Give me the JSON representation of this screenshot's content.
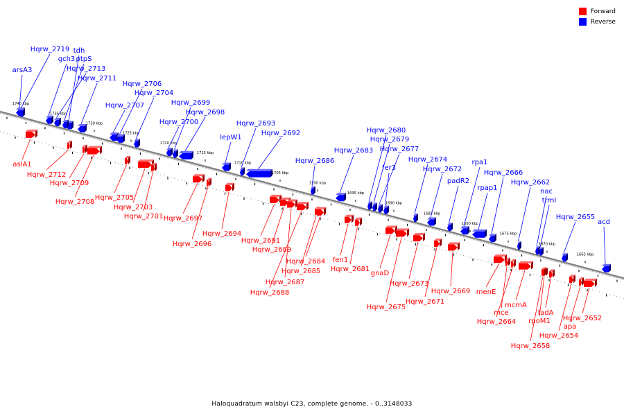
{
  "legend": {
    "forward": {
      "label": "Forward",
      "color": "#ff0000"
    },
    "reverse": {
      "label": "Reverse",
      "color": "#0000ff"
    }
  },
  "caption": "Haloquadratum walsbyi C23, complete genome. - 0..3148033",
  "genome_map": {
    "backbone_color": "#808080",
    "ticks": [
      {
        "label": "1740 kbp"
      },
      {
        "label": "1735 kbp"
      },
      {
        "label": "1730 kbp"
      },
      {
        "label": "1725 kbp"
      },
      {
        "label": "1720 kbp"
      },
      {
        "label": "1715 kbp"
      },
      {
        "label": "1710 kbp"
      },
      {
        "label": "1705 kbp"
      },
      {
        "label": "1700 kbp"
      },
      {
        "label": "1695 kbp"
      },
      {
        "label": "1690 kbp"
      },
      {
        "label": "1685 kbp"
      },
      {
        "label": "1680 kbp"
      },
      {
        "label": "1675 kbp"
      },
      {
        "label": "1670 kbp"
      },
      {
        "label": "1665 kbp"
      }
    ],
    "reverse_genes": [
      {
        "name": "arsA3"
      },
      {
        "name": "Hqrw_2719"
      },
      {
        "name": "gch3"
      },
      {
        "name": "tdh"
      },
      {
        "name": "ptpS"
      },
      {
        "name": "Hqrw_2713"
      },
      {
        "name": "Hqrw_2711"
      },
      {
        "name": "Hqrw_2707"
      },
      {
        "name": "Hqrw_2706"
      },
      {
        "name": "Hqrw_2704"
      },
      {
        "name": "Hqrw_2700"
      },
      {
        "name": "Hqrw_2699"
      },
      {
        "name": "Hqrw_2698"
      },
      {
        "name": "lepW1"
      },
      {
        "name": "Hqrw_2693"
      },
      {
        "name": "Hqrw_2692"
      },
      {
        "name": "Hqrw_2686"
      },
      {
        "name": "Hqrw_2683"
      },
      {
        "name": "Hqrw_2680"
      },
      {
        "name": "Hqrw_2679"
      },
      {
        "name": "Hqrw_2677"
      },
      {
        "name": "fer3"
      },
      {
        "name": "Hqrw_2674"
      },
      {
        "name": "Hqrw_2672"
      },
      {
        "name": "padR2"
      },
      {
        "name": "rpa1"
      },
      {
        "name": "rpap1"
      },
      {
        "name": "Hqrw_2666"
      },
      {
        "name": "Hqrw_2662"
      },
      {
        "name": "nac"
      },
      {
        "name": "trmI"
      },
      {
        "name": "Hqrw_2655"
      },
      {
        "name": "acd"
      }
    ],
    "forward_genes": [
      {
        "name": "aslA1"
      },
      {
        "name": "Hqrw_2712"
      },
      {
        "name": "Hqrw_2709"
      },
      {
        "name": "Hqrw_2708"
      },
      {
        "name": "Hqrw_2705"
      },
      {
        "name": "Hqrw_2703"
      },
      {
        "name": "Hqrw_2701"
      },
      {
        "name": "Hqrw_2697"
      },
      {
        "name": "Hqrw_2696"
      },
      {
        "name": "Hqrw_2694"
      },
      {
        "name": "Hqrw_2691"
      },
      {
        "name": "Hqrw_2689"
      },
      {
        "name": "Hqrw_2687"
      },
      {
        "name": "Hqrw_2688"
      },
      {
        "name": "Hqrw_2685"
      },
      {
        "name": "Hqrw_2684"
      },
      {
        "name": "fen1"
      },
      {
        "name": "Hqrw_2681"
      },
      {
        "name": "gnaD"
      },
      {
        "name": "Hqrw_2675"
      },
      {
        "name": "Hqrw_2673"
      },
      {
        "name": "Hqrw_2671"
      },
      {
        "name": "Hqrw_2669"
      },
      {
        "name": "menE"
      },
      {
        "name": "mce"
      },
      {
        "name": "Hqrw_2664"
      },
      {
        "name": "mcmA"
      },
      {
        "name": "rpoM1"
      },
      {
        "name": "fadA"
      },
      {
        "name": "Hqrw_2658"
      },
      {
        "name": "Hqrw_2654"
      },
      {
        "name": "apa"
      },
      {
        "name": "Hqrw_2652"
      }
    ]
  }
}
